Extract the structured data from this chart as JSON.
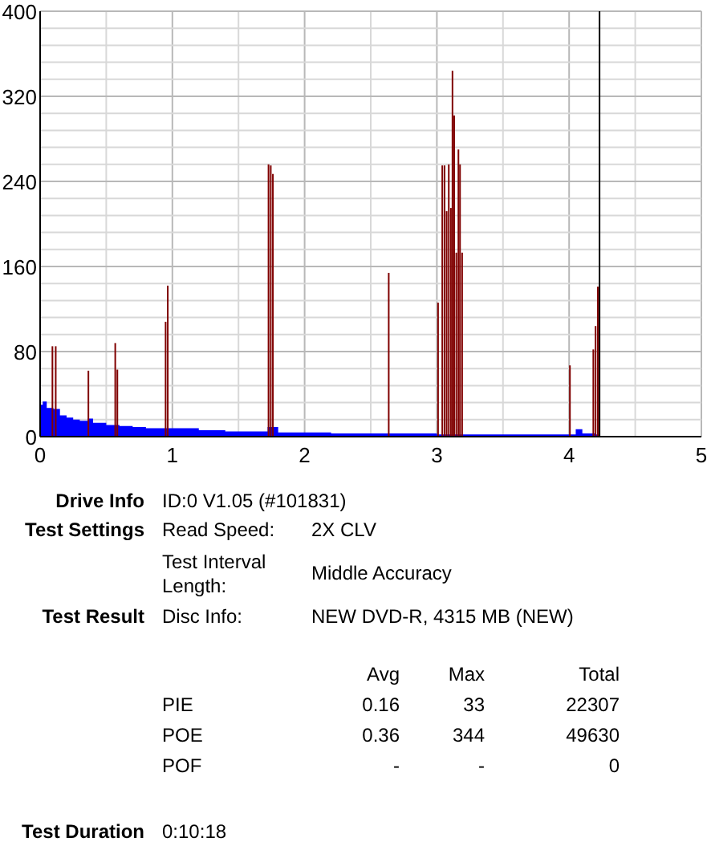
{
  "chart_data": {
    "type": "bar",
    "xlim": [
      0,
      5
    ],
    "xticks": [
      0,
      {
        "value": 0.5,
        "label": null
      },
      1,
      {
        "value": 1.5,
        "label": null
      },
      2,
      {
        "value": 2.5,
        "label": null
      },
      3,
      {
        "value": 3.5,
        "label": null
      },
      4,
      {
        "value": 4.5,
        "label": null
      },
      5
    ],
    "ylim": [
      0,
      400
    ],
    "yticks": [
      0,
      {
        "value": 16,
        "label": null
      },
      {
        "value": 32,
        "label": null
      },
      {
        "value": 48,
        "label": null
      },
      {
        "value": 64,
        "label": null
      },
      80,
      {
        "value": 96,
        "label": null
      },
      {
        "value": 112,
        "label": null
      },
      {
        "value": 128,
        "label": null
      },
      {
        "value": 144,
        "label": null
      },
      160,
      {
        "value": 176,
        "label": null
      },
      {
        "value": 192,
        "label": null
      },
      {
        "value": 208,
        "label": null
      },
      {
        "value": 224,
        "label": null
      },
      240,
      {
        "value": 256,
        "label": null
      },
      {
        "value": 272,
        "label": null
      },
      {
        "value": 288,
        "label": null
      },
      {
        "value": 304,
        "label": null
      },
      320,
      {
        "value": 336,
        "label": null
      },
      {
        "value": 352,
        "label": null
      },
      {
        "value": 368,
        "label": null
      },
      {
        "value": 384,
        "label": null
      },
      400
    ],
    "grid": true,
    "series": [
      {
        "type": "area",
        "color": "#0000ff",
        "x": [
          0,
          0.02,
          0.05,
          0.1,
          0.15,
          0.2,
          0.25,
          0.3,
          0.36,
          0.4,
          0.5,
          0.6,
          0.7,
          0.8,
          0.9,
          1.0,
          1.2,
          1.4,
          1.6,
          1.72,
          1.8,
          2.0,
          2.2,
          2.4,
          2.6,
          2.8,
          3.0,
          3.2,
          3.4,
          3.6,
          3.8,
          4.0,
          4.05,
          4.1,
          4.2,
          4.23
        ],
        "values": [
          30,
          33,
          27,
          26,
          20,
          18,
          16,
          15,
          17,
          13,
          11,
          10,
          9,
          8,
          8,
          8,
          6,
          5,
          5,
          9,
          4,
          4,
          3,
          3,
          3,
          3,
          2,
          2,
          2,
          2,
          2,
          2,
          7,
          3,
          2,
          2
        ]
      },
      {
        "color": "#800000",
        "x": [
          0.093,
          0.118,
          0.365,
          0.568,
          0.584,
          0.949,
          0.965,
          1.727,
          1.744,
          1.76,
          2.636,
          3.009,
          3.041,
          3.058,
          3.074,
          3.09,
          3.106,
          3.118,
          3.131,
          3.147,
          3.163,
          3.175,
          3.191,
          4.006,
          4.183,
          4.2,
          4.217
        ],
        "values": [
          85,
          85,
          62,
          88,
          63,
          108,
          142,
          256,
          255,
          247,
          154,
          126,
          255,
          255,
          212,
          256,
          215,
          344,
          302,
          173,
          270,
          256,
          173,
          67,
          82,
          104,
          141
        ]
      }
    ],
    "ref_lines": [
      {
        "axis": "x",
        "value": 4.23,
        "color": "#000000"
      }
    ],
    "annotations": [
      "Drive Info",
      "ID:0 V1.05 (#101831)",
      "Test Settings",
      "Read Speed:",
      "2X CLV",
      "Test Interval Length:",
      "Middle Accuracy",
      "Test Result",
      "Disc Info:",
      "NEW DVD-R, 4315 MB (NEW)",
      "Avg",
      "Max",
      "Total",
      "PIE",
      "0.16",
      "33",
      "22307",
      "POE",
      "0.36",
      "344",
      "49630",
      "POF",
      "-",
      "-",
      "0",
      "Test Duration",
      "0:10:18"
    ]
  }
}
